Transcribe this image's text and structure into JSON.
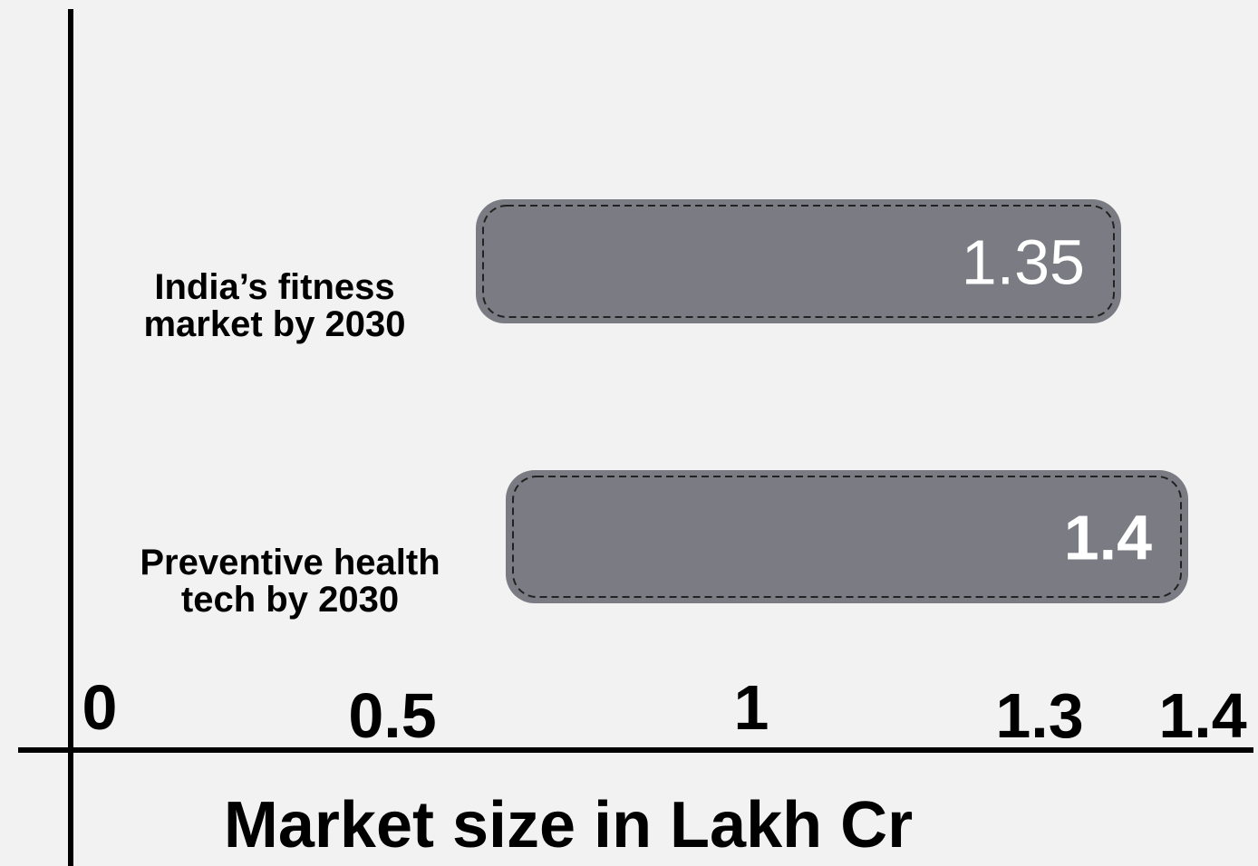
{
  "chart_data": {
    "type": "bar",
    "orientation": "horizontal",
    "categories": [
      "India’s fitness market by 2030",
      "Preventive health tech by 2030"
    ],
    "values": [
      1.35,
      1.4
    ],
    "color": "#7b7b83",
    "x_label": "Market size in Lakh Cr",
    "xlim": [
      0,
      1.4
    ],
    "xticks": [
      0,
      0.5,
      1,
      1.3,
      1.4
    ]
  }
}
